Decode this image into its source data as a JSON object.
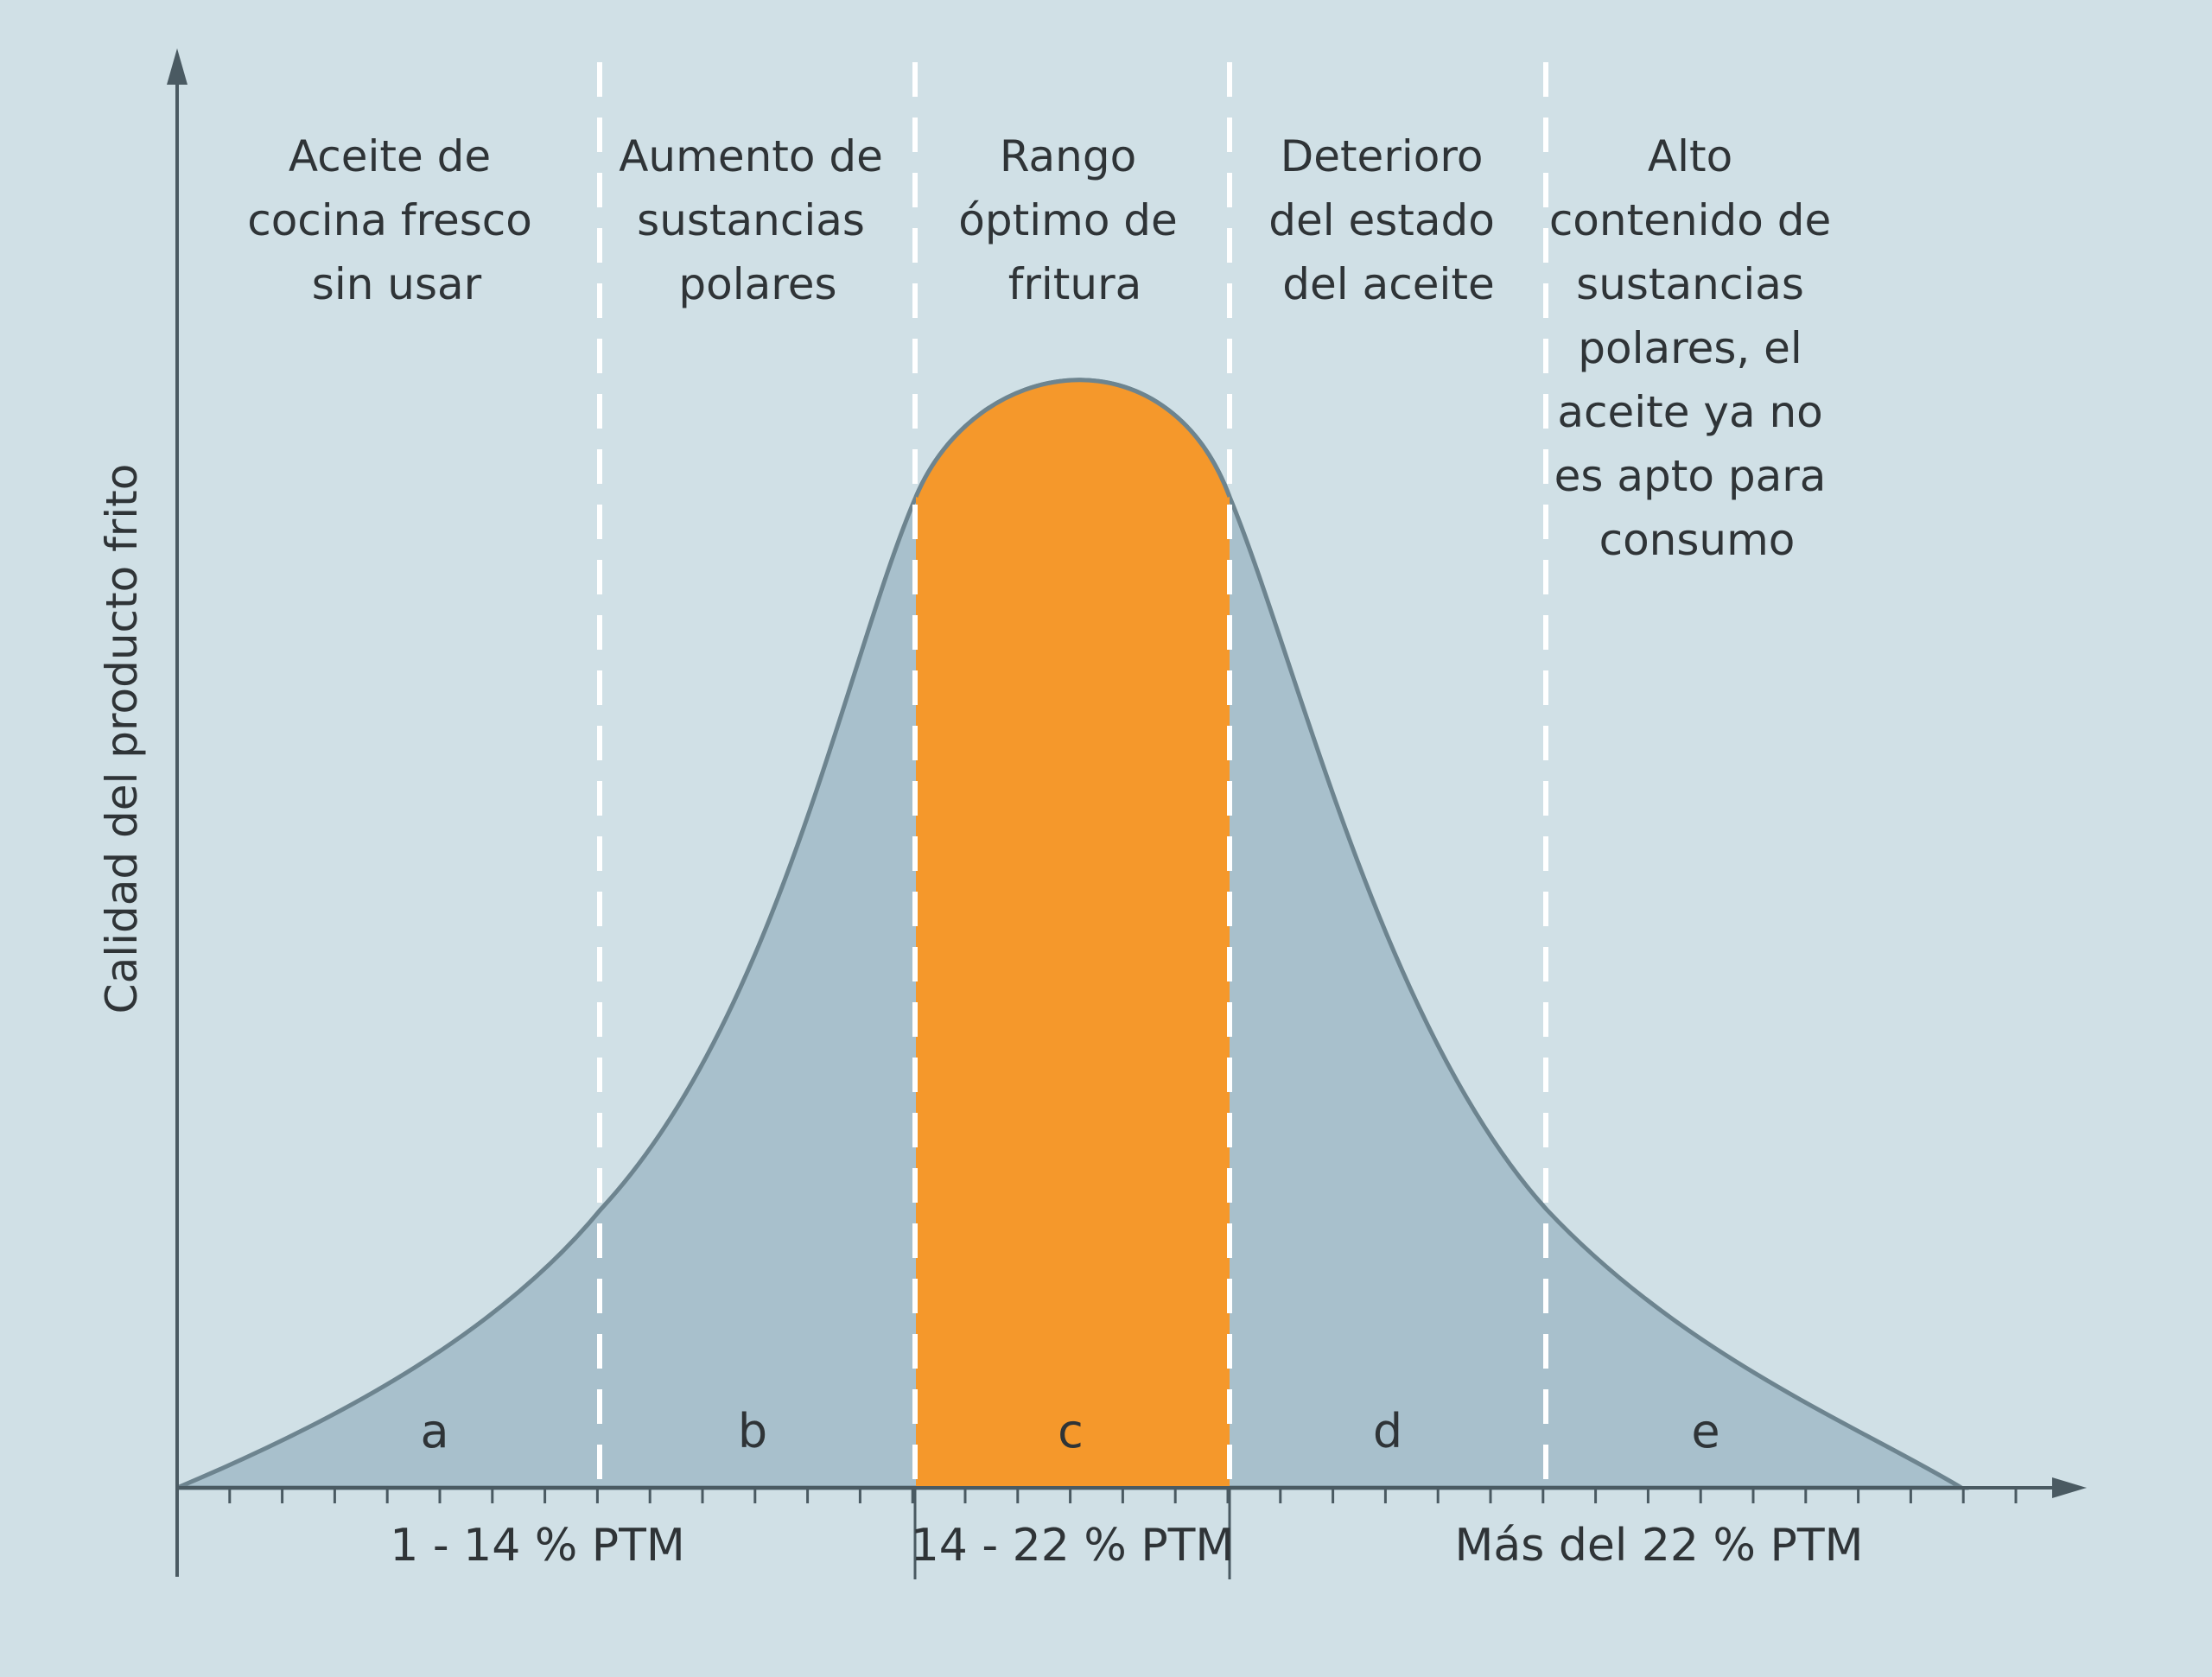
{
  "diagram": {
    "y_axis_label": "Calidad del producto frito",
    "phases": [
      {
        "id": "a",
        "lines": [
          "Aceite de",
          "cocina fresco",
          "sin usar"
        ]
      },
      {
        "id": "b",
        "lines": [
          "Aumento de",
          "sustancias",
          "polares"
        ]
      },
      {
        "id": "c",
        "lines": [
          "Rango",
          "óptimo de",
          "fritura"
        ]
      },
      {
        "id": "d",
        "lines": [
          "Deterioro",
          "del estado",
          "del aceite"
        ]
      },
      {
        "id": "e",
        "lines": [
          "Alto",
          "contenido de",
          "sustancias",
          "polares, el",
          "aceite ya no",
          "es apto para",
          "consumo"
        ]
      }
    ],
    "zone_letters": [
      "a",
      "b",
      "c",
      "d",
      "e"
    ],
    "ranges": [
      "1 - 14 % PTM",
      "14 - 22 % PTM",
      "Más del 22 % PTM"
    ],
    "colors": {
      "background": "#d0e0e6",
      "curve_fill": "#a8c0cc",
      "curve_stroke": "#6d848f",
      "optimal_fill": "#f5982b",
      "axis": "#4a5a62",
      "divider": "#ffffff",
      "text": "#2f3437"
    }
  }
}
